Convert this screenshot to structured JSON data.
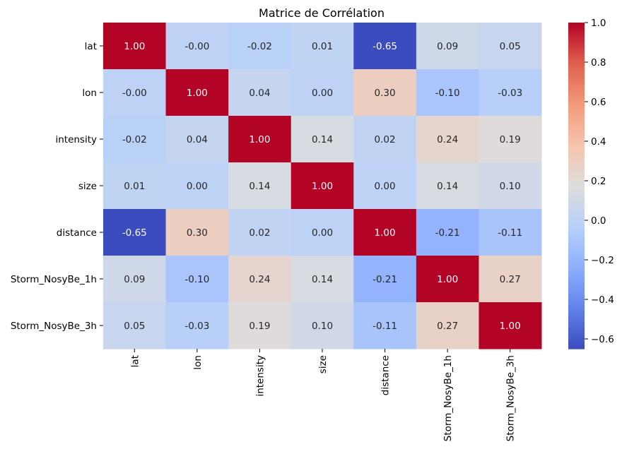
{
  "chart_data": {
    "type": "heatmap",
    "title": "Matrice de Corrélation",
    "xlabel": "",
    "ylabel": "",
    "categories": [
      "lat",
      "lon",
      "intensity",
      "size",
      "distance",
      "Storm_NosyBe_1h",
      "Storm_NosyBe_3h"
    ],
    "cell_labels": [
      [
        "1.00",
        "-0.00",
        "-0.02",
        "0.01",
        "-0.65",
        "0.09",
        "0.05"
      ],
      [
        "-0.00",
        "1.00",
        "0.04",
        "0.00",
        "0.30",
        "-0.10",
        "-0.03"
      ],
      [
        "-0.02",
        "0.04",
        "1.00",
        "0.14",
        "0.02",
        "0.24",
        "0.19"
      ],
      [
        "0.01",
        "0.00",
        "0.14",
        "1.00",
        "0.00",
        "0.14",
        "0.10"
      ],
      [
        "-0.65",
        "0.30",
        "0.02",
        "0.00",
        "1.00",
        "-0.21",
        "-0.11"
      ],
      [
        "0.09",
        "-0.10",
        "0.24",
        "0.14",
        "-0.21",
        "1.00",
        "0.27"
      ],
      [
        "0.05",
        "-0.03",
        "0.19",
        "0.10",
        "-0.11",
        "0.27",
        "1.00"
      ]
    ],
    "values": [
      [
        1.0,
        -0.0,
        -0.02,
        0.01,
        -0.65,
        0.09,
        0.05
      ],
      [
        -0.0,
        1.0,
        0.04,
        0.0,
        0.3,
        -0.1,
        -0.03
      ],
      [
        -0.02,
        0.04,
        1.0,
        0.14,
        0.02,
        0.24,
        0.19
      ],
      [
        0.01,
        0.0,
        0.14,
        1.0,
        0.0,
        0.14,
        0.1
      ],
      [
        -0.65,
        0.3,
        0.02,
        0.0,
        1.0,
        -0.21,
        -0.11
      ],
      [
        0.09,
        -0.1,
        0.24,
        0.14,
        -0.21,
        1.0,
        0.27
      ],
      [
        0.05,
        -0.03,
        0.19,
        0.1,
        -0.11,
        0.27,
        1.0
      ]
    ],
    "colormap": "coolwarm",
    "vmin": -0.65,
    "vmax": 1.0,
    "colorbar_ticks": [
      1.0,
      0.8,
      0.6,
      0.4,
      0.2,
      0.0,
      -0.2,
      -0.4,
      -0.6
    ],
    "colorbar_tick_labels": [
      "1.0",
      "0.8",
      "0.6",
      "0.4",
      "0.2",
      "0.0",
      "−0.2",
      "−0.4",
      "−0.6"
    ],
    "colorbar_position": "right",
    "grid": false
  }
}
